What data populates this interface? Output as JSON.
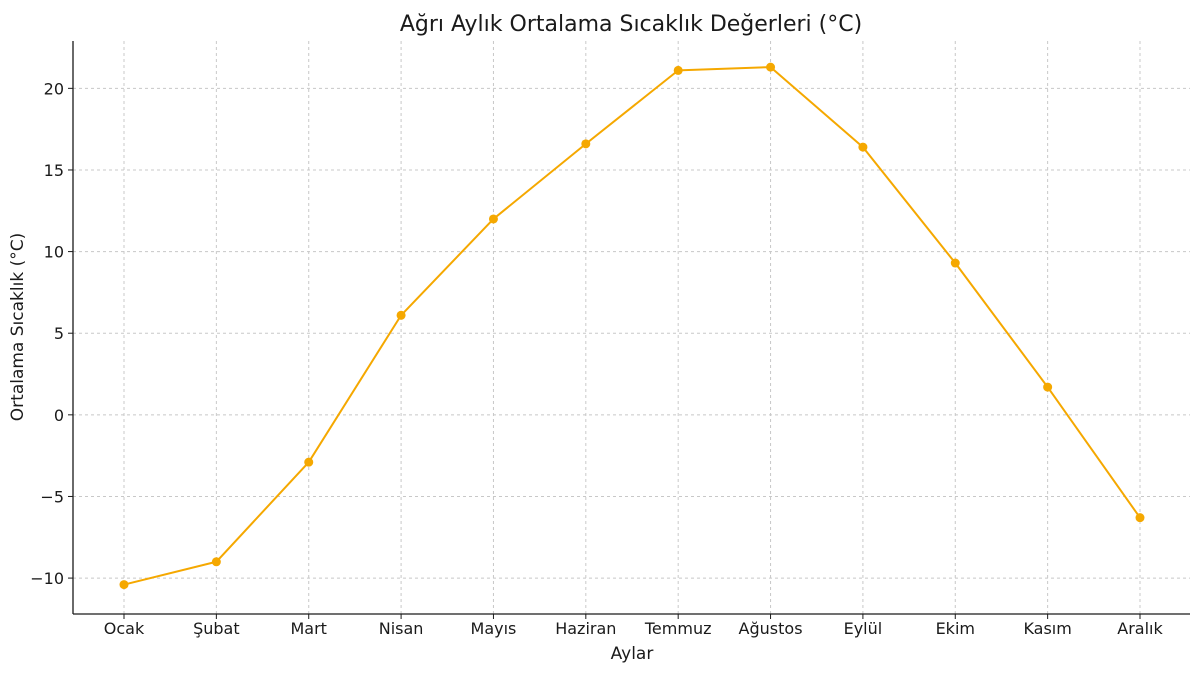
{
  "chart_data": {
    "type": "line",
    "title": "Ağrı Aylık Ortalama Sıcaklık Değerleri (°C)",
    "xlabel": "Aylar",
    "ylabel": "Ortalama Sıcaklık (°C)",
    "categories": [
      "Ocak",
      "Şubat",
      "Mart",
      "Nisan",
      "Mayıs",
      "Haziran",
      "Temmuz",
      "Ağustos",
      "Eylül",
      "Ekim",
      "Kasım",
      "Aralık"
    ],
    "series": [
      {
        "values": [
          -10.4,
          -9.0,
          -2.9,
          6.1,
          12.0,
          16.6,
          21.1,
          21.3,
          16.4,
          9.3,
          1.7,
          -6.3
        ],
        "color": "#f5a800"
      }
    ],
    "ylim": [
      -12.2,
      22.9
    ],
    "yticks": [
      -10,
      -5,
      0,
      5,
      10,
      15,
      20
    ],
    "ytick_labels": [
      "−10",
      "−5",
      "0",
      "5",
      "10",
      "15",
      "20"
    ],
    "grid": true,
    "marker": "circle"
  }
}
